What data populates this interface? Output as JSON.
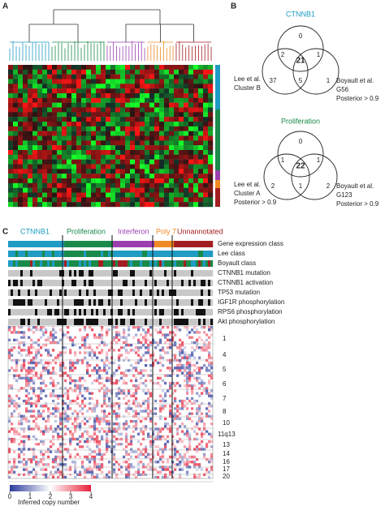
{
  "panel_a": {
    "label": "A"
  },
  "panel_b": {
    "label": "B",
    "venns": [
      {
        "title": "CTNNB1",
        "numbers": [
          0,
          2,
          21,
          1,
          37,
          5,
          1
        ],
        "left_label": [
          "Lee et al.",
          "Cluster B"
        ],
        "right_label": [
          "Boyault et al.",
          "G56",
          "Posterior > 0.9"
        ]
      },
      {
        "title": "Proliferation",
        "numbers": [
          0,
          1,
          22,
          1,
          2,
          1,
          2
        ],
        "left_label": [
          "Lee et al.",
          "Cluster A",
          "Posterior > 0.9"
        ],
        "right_label": [
          "Boyault et al.",
          "G123",
          "Posterior > 0.9"
        ]
      }
    ]
  },
  "panel_c": {
    "label": "C",
    "classes": [
      "CTNNB1",
      "Proliferation",
      "Interferon",
      "Poly 7",
      "Unnannotated"
    ],
    "rows": [
      "Gene expression class",
      "Lee class",
      "Boyault class",
      "CTNNB1 mutation",
      "CTNNB1 activation",
      "TP53 mutation",
      "IGF1R phosphorylation",
      "RPS6 phosphorylation",
      "Akt phosphorylation"
    ],
    "chromosomes": [
      "1",
      "4",
      "5",
      "6",
      "7",
      "8",
      "10",
      "11q13",
      "13",
      "14",
      "16",
      "17",
      "20"
    ],
    "scale": {
      "ticks": [
        0,
        1,
        2,
        3,
        4
      ],
      "label": "Inferred copy number"
    }
  }
}
